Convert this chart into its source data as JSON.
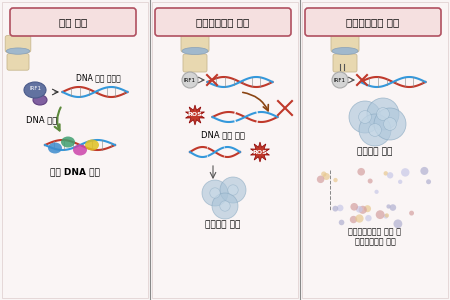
{
  "panel1_title": "정상 연골",
  "panel2_title": "퇴행성관절염 연골",
  "panel3_title": "퇴행성관절염 연골",
  "panel1_label1": "DNA 복구 유전자",
  "panel1_label2": "DNA 복구",
  "panel1_label3": "정상 DNA 유지",
  "panel2_label2": "DNA 손상 축적",
  "panel2_label3": "세포노화 촉진",
  "panel3_label2": "세포노화 축적",
  "panel3_label3": "세포노화분비형 분비 및\n퇴행성관절염 악화",
  "bg_color": "#f9f5f5",
  "panel_bg": "#faf5f5",
  "title_box_color": "#f5e0e0",
  "title_border_color": "#b05060",
  "dna_color1": "#c0392b",
  "dna_color2": "#3498db",
  "arrow_green": "#5d8a3c",
  "arrow_brown": "#8b4513",
  "irf1_color": "#d4d4d4",
  "cell_blue": "#aac4d8",
  "dot_colors": [
    "#d4a0a0",
    "#c8c8e8",
    "#e8c890",
    "#b0b0d0"
  ],
  "sep_line_color": "#888888",
  "ros_color": "#c0392b",
  "cross_color": "#c0392b"
}
